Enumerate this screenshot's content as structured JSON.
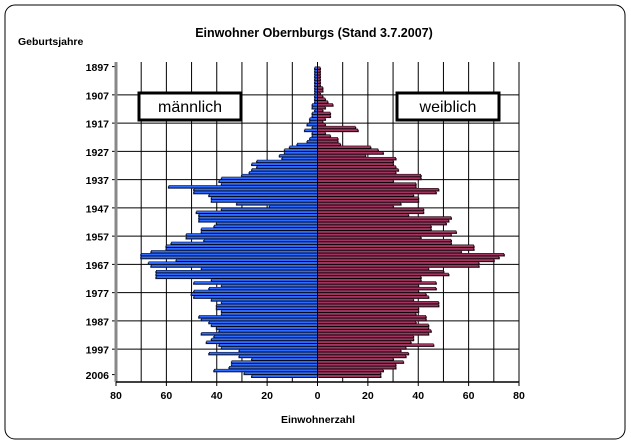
{
  "chart_data": {
    "type": "bar",
    "orientation": "horizontal",
    "layout": "population-pyramid",
    "title": "Einwohner Obernburgs (Stand 3.7.2007)",
    "ylabel": "Geburtsjahre",
    "xlabel": "Einwohnerzahl",
    "xlim": [
      -80,
      80
    ],
    "x_tick_labels": [
      "80",
      "60",
      "40",
      "20",
      "0",
      "20",
      "40",
      "60",
      "80"
    ],
    "y_tick_labels": [
      "1897",
      "1907",
      "1917",
      "1927",
      "1937",
      "1947",
      "1957",
      "1967",
      "1977",
      "1987",
      "1997",
      "2006"
    ],
    "grid": true,
    "years_first": 1897,
    "years_last": 2006,
    "series": [
      {
        "name": "männlich",
        "color": "#2f6bff",
        "values": [
          1,
          1,
          1,
          1,
          1,
          1,
          1,
          1,
          1,
          1,
          1,
          1,
          1,
          2,
          2,
          1,
          2,
          2,
          3,
          3,
          4,
          2,
          5,
          2,
          2,
          3,
          4,
          8,
          11,
          13,
          13,
          15,
          14,
          24,
          26,
          24,
          26,
          27,
          30,
          38,
          39,
          38,
          59,
          49,
          49,
          43,
          42,
          42,
          32,
          19,
          38,
          48,
          47,
          47,
          47,
          40,
          41,
          46,
          46,
          52,
          52,
          45,
          58,
          60,
          60,
          66,
          70,
          70,
          56,
          67,
          66,
          46,
          64,
          64,
          64,
          42,
          49,
          38,
          43,
          49,
          50,
          49,
          42,
          38,
          40,
          40,
          38,
          38,
          47,
          46,
          43,
          42,
          40,
          39,
          46,
          41,
          42,
          44,
          39,
          38,
          31,
          43,
          31,
          26,
          34,
          34,
          35,
          41,
          29,
          26
        ]
      },
      {
        "name": "weiblich",
        "color": "#a0365f",
        "values": [
          1,
          1,
          1,
          1,
          1,
          1,
          1,
          2,
          2,
          1,
          2,
          3,
          4,
          6,
          3,
          2,
          5,
          5,
          3,
          2,
          3,
          15,
          16,
          3,
          5,
          8,
          8,
          9,
          21,
          24,
          26,
          19,
          31,
          30,
          30,
          31,
          32,
          31,
          41,
          41,
          30,
          39,
          39,
          48,
          47,
          38,
          40,
          40,
          33,
          30,
          42,
          42,
          36,
          53,
          52,
          51,
          45,
          45,
          55,
          53,
          41,
          53,
          53,
          62,
          62,
          57,
          74,
          72,
          70,
          64,
          64,
          44,
          50,
          52,
          41,
          41,
          47,
          40,
          47,
          40,
          43,
          44,
          38,
          48,
          48,
          40,
          40,
          39,
          43,
          43,
          39,
          44,
          44,
          45,
          44,
          38,
          38,
          37,
          46,
          35,
          33,
          36,
          35,
          30,
          34,
          31,
          31,
          26,
          25,
          25
        ]
      }
    ]
  }
}
